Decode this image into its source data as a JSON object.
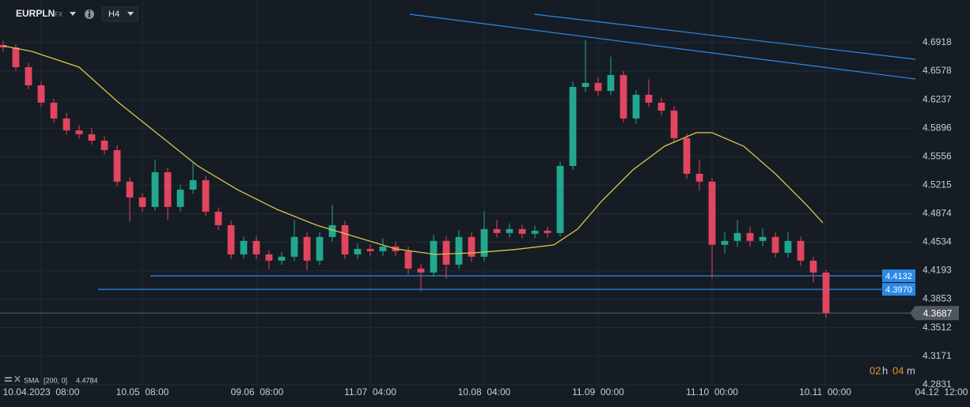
{
  "chart_data": {
    "type": "candlestick",
    "symbol": "EURPLN",
    "market": "FX",
    "timeframe": "H4",
    "up_color": "#22a88e",
    "down_color": "#e2455f",
    "grid": true,
    "xlim": [
      0,
      306.5
    ],
    "ylim": [
      4.2819,
      4.7428
    ],
    "yticks": [
      4.6918,
      4.6578,
      4.6237,
      4.5896,
      4.5556,
      4.5215,
      4.4874,
      4.4534,
      4.4193,
      4.3853,
      4.3512,
      4.3171,
      4.2831
    ],
    "xticks": [
      {
        "value": 13,
        "label": "10.04.2023  08:00"
      },
      {
        "value": 45,
        "label": "10.05  08:00"
      },
      {
        "value": 81.25,
        "label": "09.06  08:00"
      },
      {
        "value": 117,
        "label": "11.07  04:00"
      },
      {
        "value": 153,
        "label": "10.08  04:00"
      },
      {
        "value": 189,
        "label": "11.09  00:00"
      },
      {
        "value": 225,
        "label": "11.10  00:00"
      },
      {
        "value": 260.75,
        "label": "10.11  00:00"
      },
      {
        "value": 297.5,
        "label": "04.12  12:00"
      }
    ],
    "x": [
      1,
      5,
      9,
      13,
      17,
      21,
      25,
      29,
      33,
      37,
      41,
      45,
      49,
      53,
      57,
      61,
      65,
      69,
      73,
      77,
      81,
      85,
      89,
      93,
      97,
      101,
      105,
      109,
      113,
      117,
      121,
      125,
      129,
      133,
      137,
      141,
      145,
      149,
      153,
      157,
      161,
      165,
      169,
      173,
      177,
      181,
      185,
      189,
      193,
      197,
      201,
      205,
      209,
      213,
      217,
      221,
      225,
      229,
      233,
      237,
      241,
      245,
      249,
      253,
      257,
      261
    ],
    "open": [
      4.689,
      4.6861,
      4.6625,
      4.6408,
      4.6201,
      4.6012,
      4.587,
      4.5823,
      4.5747,
      4.5634,
      4.5257,
      4.5068,
      4.4955,
      4.537,
      4.4955,
      4.5162,
      4.5275,
      4.4898,
      4.4737,
      4.4388,
      4.4549,
      4.4388,
      4.4313,
      4.436,
      4.4596,
      4.4313,
      4.4596,
      4.4737,
      4.4388,
      4.4454,
      4.4426,
      4.4482,
      4.4426,
      4.4218,
      4.4171,
      4.4549,
      4.4265,
      4.4596,
      4.436,
      4.469,
      4.4643,
      4.469,
      4.4634,
      4.4671,
      4.4643,
      4.5445,
      4.6389,
      4.6437,
      4.6342,
      4.6531,
      4.6012,
      4.6295,
      4.6201,
      4.6106,
      4.5776,
      4.5351,
      4.5257,
      4.4502,
      4.4549,
      4.4643,
      4.4549,
      4.4596,
      4.4407,
      4.4549,
      4.4313,
      4.4171
    ],
    "high": [
      4.694,
      4.69,
      4.668,
      4.645,
      4.625,
      4.608,
      4.593,
      4.59,
      4.58,
      4.569,
      4.531,
      4.512,
      4.552,
      4.542,
      4.522,
      4.548,
      4.533,
      4.495,
      4.479,
      4.46,
      4.46,
      4.444,
      4.442,
      4.48,
      4.465,
      4.465,
      4.498,
      4.479,
      4.452,
      4.451,
      4.458,
      4.454,
      4.448,
      4.427,
      4.462,
      4.46,
      4.468,
      4.465,
      4.49,
      4.48,
      4.476,
      4.474,
      4.473,
      4.472,
      4.55,
      4.645,
      4.695,
      4.65,
      4.675,
      4.658,
      4.635,
      4.648,
      4.626,
      4.616,
      4.583,
      4.552,
      4.53,
      4.465,
      4.48,
      4.472,
      4.47,
      4.465,
      4.465,
      4.46,
      4.436,
      4.42
    ],
    "low": [
      4.681,
      4.658,
      4.636,
      4.615,
      4.596,
      4.582,
      4.577,
      4.57,
      4.558,
      4.52,
      4.478,
      4.49,
      4.491,
      4.48,
      4.49,
      4.511,
      4.485,
      4.468,
      4.433,
      4.434,
      4.433,
      4.421,
      4.426,
      4.431,
      4.42,
      4.426,
      4.454,
      4.433,
      4.433,
      4.437,
      4.437,
      4.437,
      4.415,
      4.395,
      4.412,
      4.41,
      4.421,
      4.43,
      4.431,
      4.459,
      4.459,
      4.458,
      4.458,
      4.459,
      4.46,
      4.54,
      4.633,
      4.628,
      4.629,
      4.596,
      4.595,
      4.615,
      4.605,
      4.572,
      4.529,
      4.515,
      4.41,
      4.44,
      4.448,
      4.448,
      4.448,
      4.435,
      4.435,
      4.425,
      4.405,
      4.363
    ],
    "close": [
      4.6861,
      4.6625,
      4.6408,
      4.6201,
      4.6012,
      4.587,
      4.5823,
      4.5747,
      4.5634,
      4.5257,
      4.5068,
      4.4955,
      4.537,
      4.4955,
      4.5162,
      4.5275,
      4.4898,
      4.4737,
      4.4388,
      4.4549,
      4.4388,
      4.4313,
      4.436,
      4.4596,
      4.4313,
      4.4596,
      4.4737,
      4.4388,
      4.4454,
      4.4426,
      4.4482,
      4.4426,
      4.4218,
      4.4171,
      4.4549,
      4.4265,
      4.4596,
      4.436,
      4.469,
      4.4643,
      4.469,
      4.4634,
      4.4671,
      4.4643,
      4.5445,
      4.6389,
      4.6437,
      4.6342,
      4.6531,
      4.6012,
      4.6295,
      4.6201,
      4.6106,
      4.5776,
      4.5351,
      4.5257,
      4.4502,
      4.4549,
      4.4643,
      4.4549,
      4.4596,
      4.4407,
      4.4549,
      4.4313,
      4.4171,
      4.3687
    ],
    "sma": {
      "name": "SMA",
      "params": "[200,  0]",
      "value": 4.4784,
      "color": "#d9c64b",
      "x": [
        1,
        10,
        25,
        37.5,
        50,
        62.5,
        75,
        87.5,
        100,
        112.5,
        125,
        137.5,
        150,
        162.5,
        175,
        182.5,
        190,
        200,
        210,
        220,
        225,
        235,
        245,
        255,
        260
      ],
      "values": [
        4.688,
        4.6814,
        4.6625,
        4.6201,
        4.5823,
        4.5445,
        4.5162,
        4.4926,
        4.4737,
        4.4596,
        4.4454,
        4.4388,
        4.4407,
        4.4445,
        4.4501,
        4.469,
        4.5021,
        4.5398,
        4.5681,
        4.5842,
        4.5842,
        4.5681,
        4.5351,
        4.4973,
        4.4766
      ]
    },
    "trend_lines": [
      {
        "color": "#2b8ae6",
        "x": [
          129.5,
          289.25
        ],
        "values": [
          4.7258,
          4.6484
        ]
      },
      {
        "color": "#2b8ae6",
        "x": [
          168.75,
          289.25
        ],
        "values": [
          4.7258,
          4.672
        ]
      }
    ],
    "levels": [
      {
        "value": 4.4132,
        "start": 47.5,
        "color": "#2b8ae6"
      },
      {
        "value": 4.397,
        "label": "4.3970",
        "start": 31,
        "color": "#2b8ae6"
      }
    ],
    "last_price": 4.3687,
    "countdown": [
      "02",
      "h",
      "04",
      "m"
    ]
  }
}
